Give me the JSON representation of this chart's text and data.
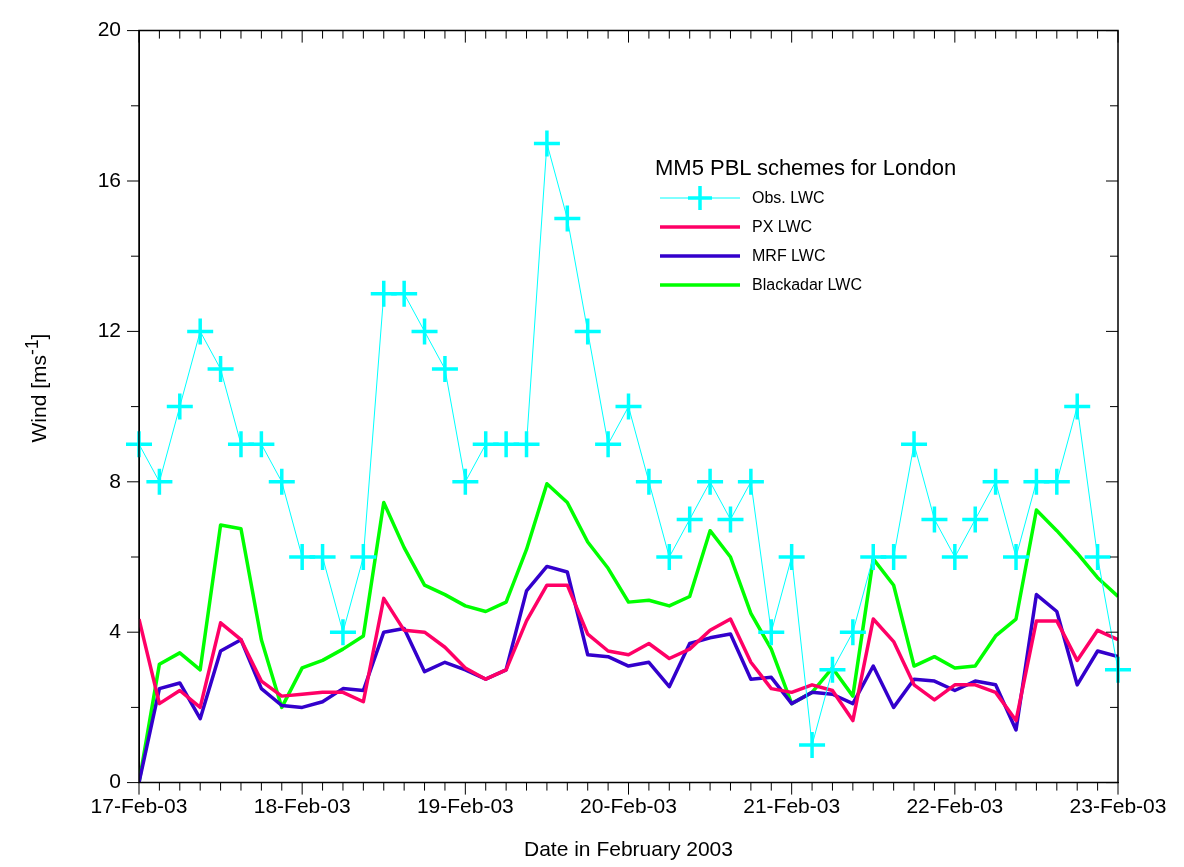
{
  "chart_data": {
    "type": "line",
    "xlabel": "Date in February 2003",
    "ylabel": "Wind [ms$^{-1}$]",
    "legend_title": "MM5 PBL schemes for London",
    "legend": "top right",
    "grid": false,
    "x": [
      "2003-02-17T00:00",
      "2003-02-17T03:00",
      "2003-02-17T06:00",
      "2003-02-17T09:00",
      "2003-02-17T12:00",
      "2003-02-17T15:00",
      "2003-02-17T18:00",
      "2003-02-17T21:00",
      "2003-02-18T00:00",
      "2003-02-18T03:00",
      "2003-02-18T06:00",
      "2003-02-18T09:00",
      "2003-02-18T12:00",
      "2003-02-18T15:00",
      "2003-02-18T18:00",
      "2003-02-18T21:00",
      "2003-02-19T00:00",
      "2003-02-19T03:00",
      "2003-02-19T06:00",
      "2003-02-19T09:00",
      "2003-02-19T12:00",
      "2003-02-19T15:00",
      "2003-02-19T18:00",
      "2003-02-19T21:00",
      "2003-02-20T00:00",
      "2003-02-20T03:00",
      "2003-02-20T06:00",
      "2003-02-20T09:00",
      "2003-02-20T12:00",
      "2003-02-20T15:00",
      "2003-02-20T18:00",
      "2003-02-20T21:00",
      "2003-02-21T00:00",
      "2003-02-21T03:00",
      "2003-02-21T06:00",
      "2003-02-21T09:00",
      "2003-02-21T12:00",
      "2003-02-21T15:00",
      "2003-02-21T18:00",
      "2003-02-21T21:00",
      "2003-02-22T00:00",
      "2003-02-22T03:00",
      "2003-02-22T06:00",
      "2003-02-22T09:00",
      "2003-02-22T12:00",
      "2003-02-22T15:00",
      "2003-02-22T18:00",
      "2003-02-22T21:00",
      "2003-02-23T00:00"
    ],
    "xlim": [
      "2003-02-17",
      "2003-02-23"
    ],
    "xticks": [
      {
        "value": "2003-02-17",
        "label": "17-Feb-03"
      },
      {
        "value": "2003-02-17T03:00",
        "label": null
      },
      {
        "value": "2003-02-17T06:00",
        "label": null
      },
      {
        "value": "2003-02-17T09:00",
        "label": null
      },
      {
        "value": "2003-02-17T12:00",
        "label": null
      },
      {
        "value": "2003-02-17T15:00",
        "label": null
      },
      {
        "value": "2003-02-17T18:00",
        "label": null
      },
      {
        "value": "2003-02-17T21:00",
        "label": null
      },
      {
        "value": "2003-02-18",
        "label": "18-Feb-03"
      },
      {
        "value": "2003-02-18T03:00",
        "label": null
      },
      {
        "value": "2003-02-18T06:00",
        "label": null
      },
      {
        "value": "2003-02-18T09:00",
        "label": null
      },
      {
        "value": "2003-02-18T12:00",
        "label": null
      },
      {
        "value": "2003-02-18T15:00",
        "label": null
      },
      {
        "value": "2003-02-18T18:00",
        "label": null
      },
      {
        "value": "2003-02-18T21:00",
        "label": null
      },
      {
        "value": "2003-02-19",
        "label": "19-Feb-03"
      },
      {
        "value": "2003-02-19T03:00",
        "label": null
      },
      {
        "value": "2003-02-19T06:00",
        "label": null
      },
      {
        "value": "2003-02-19T09:00",
        "label": null
      },
      {
        "value": "2003-02-19T12:00",
        "label": null
      },
      {
        "value": "2003-02-19T15:00",
        "label": null
      },
      {
        "value": "2003-02-19T18:00",
        "label": null
      },
      {
        "value": "2003-02-19T21:00",
        "label": null
      },
      {
        "value": "2003-02-20",
        "label": "20-Feb-03"
      },
      {
        "value": "2003-02-20T03:00",
        "label": null
      },
      {
        "value": "2003-02-20T06:00",
        "label": null
      },
      {
        "value": "2003-02-20T09:00",
        "label": null
      },
      {
        "value": "2003-02-20T12:00",
        "label": null
      },
      {
        "value": "2003-02-20T15:00",
        "label": null
      },
      {
        "value": "2003-02-20T18:00",
        "label": null
      },
      {
        "value": "2003-02-20T21:00",
        "label": null
      },
      {
        "value": "2003-02-21",
        "label": "21-Feb-03"
      },
      {
        "value": "2003-02-21T03:00",
        "label": null
      },
      {
        "value": "2003-02-21T06:00",
        "label": null
      },
      {
        "value": "2003-02-21T09:00",
        "label": null
      },
      {
        "value": "2003-02-21T12:00",
        "label": null
      },
      {
        "value": "2003-02-21T15:00",
        "label": null
      },
      {
        "value": "2003-02-21T18:00",
        "label": null
      },
      {
        "value": "2003-02-21T21:00",
        "label": null
      },
      {
        "value": "2003-02-22",
        "label": "22-Feb-03"
      },
      {
        "value": "2003-02-22T03:00",
        "label": null
      },
      {
        "value": "2003-02-22T06:00",
        "label": null
      },
      {
        "value": "2003-02-22T09:00",
        "label": null
      },
      {
        "value": "2003-02-22T12:00",
        "label": null
      },
      {
        "value": "2003-02-22T15:00",
        "label": null
      },
      {
        "value": "2003-02-22T18:00",
        "label": null
      },
      {
        "value": "2003-02-22T21:00",
        "label": null
      },
      {
        "value": "2003-02-23",
        "label": "23-Feb-03"
      }
    ],
    "ylim": [
      0,
      20
    ],
    "yticks": [
      0,
      {
        "value": 2,
        "label": null
      },
      4,
      {
        "value": 6,
        "label": null
      },
      8,
      {
        "value": 10,
        "label": null
      },
      12,
      {
        "value": 14,
        "label": null
      },
      16,
      {
        "value": 18,
        "label": null
      },
      20
    ],
    "series": [
      {
        "name": "Obs. LWC",
        "color": "#00ffff",
        "marker": "cross",
        "values": [
          9,
          8,
          10,
          12,
          11,
          9,
          9,
          8,
          6,
          6,
          4,
          6,
          13,
          13,
          12,
          11,
          8,
          9,
          9,
          9,
          17,
          15,
          12,
          9,
          10,
          8,
          6,
          7,
          8,
          7,
          8,
          4,
          6,
          1,
          3,
          4,
          6,
          6,
          9,
          7,
          6,
          7,
          8,
          6,
          8,
          8,
          10,
          6,
          3
        ]
      },
      {
        "name": "PX LWC",
        "color": "#ff0066",
        "marker": "none",
        "values": [
          4.35,
          2.1,
          2.45,
          2.0,
          4.25,
          3.8,
          2.7,
          2.3,
          2.35,
          2.4,
          2.4,
          2.15,
          4.9,
          4.05,
          4.0,
          3.6,
          3.05,
          2.75,
          3.0,
          4.3,
          5.25,
          5.25,
          3.95,
          3.5,
          3.4,
          3.7,
          3.3,
          3.55,
          4.05,
          4.35,
          3.2,
          2.5,
          2.4,
          2.6,
          2.45,
          1.65,
          4.35,
          3.75,
          2.6,
          2.2,
          2.6,
          2.6,
          2.4,
          1.65,
          4.3,
          4.3,
          3.25,
          4.05,
          3.8
        ]
      },
      {
        "name": "MRF LWC",
        "color": "#3300cc",
        "marker": "none",
        "values": [
          0,
          2.5,
          2.65,
          1.7,
          3.5,
          3.8,
          2.5,
          2.05,
          2.0,
          2.15,
          2.5,
          2.45,
          4.0,
          4.1,
          2.95,
          3.2,
          3.0,
          2.75,
          3.0,
          5.1,
          5.75,
          5.6,
          3.4,
          3.35,
          3.1,
          3.2,
          2.55,
          3.7,
          3.85,
          3.95,
          2.75,
          2.8,
          2.1,
          2.4,
          2.35,
          2.1,
          3.1,
          2.0,
          2.75,
          2.7,
          2.45,
          2.7,
          2.6,
          1.4,
          5.0,
          4.55,
          2.6,
          3.5,
          3.35
        ]
      },
      {
        "name": "Blackadar LWC",
        "color": "#00ff00",
        "marker": "none",
        "values": [
          0,
          3.15,
          3.45,
          3.0,
          6.85,
          6.75,
          3.8,
          2.0,
          3.05,
          3.25,
          3.55,
          3.9,
          7.45,
          6.25,
          5.25,
          5.0,
          4.7,
          4.55,
          4.8,
          6.2,
          7.95,
          7.45,
          6.4,
          5.7,
          4.8,
          4.85,
          4.7,
          4.95,
          6.7,
          6.0,
          4.5,
          3.55,
          2.1,
          2.4,
          3.05,
          2.3,
          5.95,
          5.25,
          3.1,
          3.35,
          3.05,
          3.1,
          3.9,
          4.35,
          7.25,
          6.7,
          6.1,
          5.45,
          4.95
        ]
      }
    ]
  }
}
